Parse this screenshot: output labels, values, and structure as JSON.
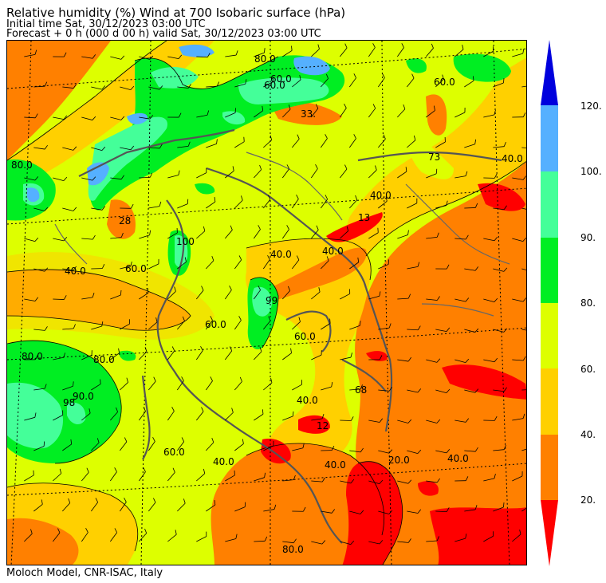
{
  "header": {
    "title": "Relative humidity (%) Wind  at 700 Isobaric surface (hPa)",
    "initial_time": "Initial time  Sat, 30/12/2023  03:00 UTC",
    "forecast": "Forecast  +   0 h  (000 d 00 h)  valid Sat, 30/12/2023 03:00 UTC"
  },
  "footer": {
    "credit": "Moloch Model, CNR-ISAC, Italy"
  },
  "colorbar": {
    "ticks": [
      "20.",
      "40.",
      "60.",
      "80.",
      "90.",
      "100.",
      "120."
    ],
    "bands": [
      {
        "from": 0,
        "to": 20,
        "color": "#ff0000"
      },
      {
        "from": 20,
        "to": 40,
        "color": "#ff8000"
      },
      {
        "from": 40,
        "to": 60,
        "color": "#ffd000"
      },
      {
        "from": 60,
        "to": 80,
        "color": "#ddff00"
      },
      {
        "from": 80,
        "to": 90,
        "color": "#00ee22"
      },
      {
        "from": 90,
        "to": 100,
        "color": "#44ff99"
      },
      {
        "from": 100,
        "to": 120,
        "color": "#55b0ff"
      },
      {
        "from": 120,
        "to": 140,
        "color": "#0000dd"
      }
    ]
  },
  "map_labels": {
    "l80a": "80.0",
    "l60a": "60.0",
    "l60b": "60.0",
    "l60c": "60.0",
    "l33": "33.",
    "l80b": "80.0",
    "l73": "73",
    "l40a": "40.0",
    "l40b": "40.0",
    "l28": "28",
    "l100": "100",
    "l40c": "40.0",
    "l60d": "60.0",
    "l40d": "40.0",
    "l40e": "40.0",
    "l99": "99",
    "l60e": "60.0",
    "l80c": "80.0",
    "l80d": "80.0",
    "l90": "90.0",
    "l98": "98",
    "l68": "68",
    "l40f": "40.0",
    "l12": "12",
    "l60f": "60.0",
    "l40g": "40.0",
    "l40h": "40.0",
    "l20": "20.0",
    "l40i": "40.0",
    "l80e": "80.0",
    "l60g": "60.0",
    "l13": "13"
  }
}
